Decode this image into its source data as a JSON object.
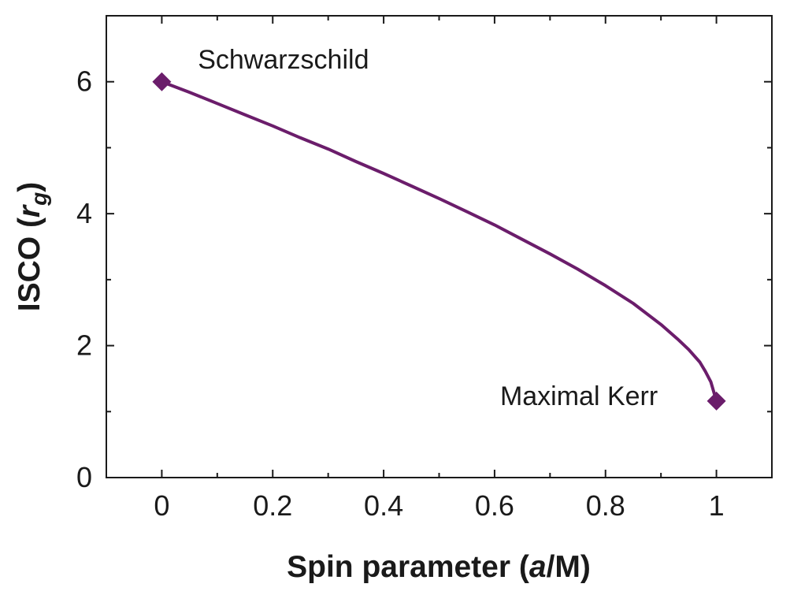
{
  "chart_data": {
    "type": "line",
    "title": "",
    "xlabel": {
      "prefix": "Spin parameter (",
      "italic": "a",
      "suffix": "/M)"
    },
    "ylabel": {
      "prefix": "ISCO (",
      "italic": "r",
      "sub": "g",
      "suffix": ")"
    },
    "xlim": [
      -0.1,
      1.1
    ],
    "ylim": [
      0,
      7
    ],
    "xticks": [
      0,
      0.2,
      0.4,
      0.6,
      0.8,
      1
    ],
    "xtick_labels": [
      "0",
      "0.2",
      "0.4",
      "0.6",
      "0.8",
      "1"
    ],
    "yticks": [
      0,
      2,
      4,
      6
    ],
    "ytick_labels": [
      "0",
      "2",
      "4",
      "6"
    ],
    "minor_xticks": [
      0.1,
      0.3,
      0.5,
      0.7,
      0.9
    ],
    "minor_yticks": [
      1,
      3,
      5
    ],
    "grid": false,
    "series": [
      {
        "color": "#6b1d6b",
        "x": [
          0,
          0.05,
          0.1,
          0.15,
          0.2,
          0.25,
          0.3,
          0.35,
          0.4,
          0.45,
          0.5,
          0.55,
          0.6,
          0.65,
          0.7,
          0.75,
          0.8,
          0.85,
          0.9,
          0.93,
          0.95,
          0.97,
          0.98,
          0.99,
          1
        ],
        "y": [
          6.0,
          5.84,
          5.67,
          5.5,
          5.33,
          5.15,
          4.98,
          4.79,
          4.61,
          4.42,
          4.23,
          4.03,
          3.83,
          3.61,
          3.39,
          3.16,
          2.91,
          2.64,
          2.32,
          2.1,
          1.94,
          1.75,
          1.61,
          1.45,
          1.16
        ]
      }
    ],
    "markers": [
      {
        "x": 0,
        "y": 6.0,
        "shape": "diamond",
        "color": "#6b1d6b"
      },
      {
        "x": 1,
        "y": 1.16,
        "shape": "diamond",
        "color": "#6b1d6b"
      }
    ],
    "annotations": [
      {
        "text": "Schwarzschild",
        "x": 0.065,
        "y": 6.2
      },
      {
        "text": "Maximal Kerr",
        "x": 0.61,
        "y": 1.1
      }
    ]
  }
}
